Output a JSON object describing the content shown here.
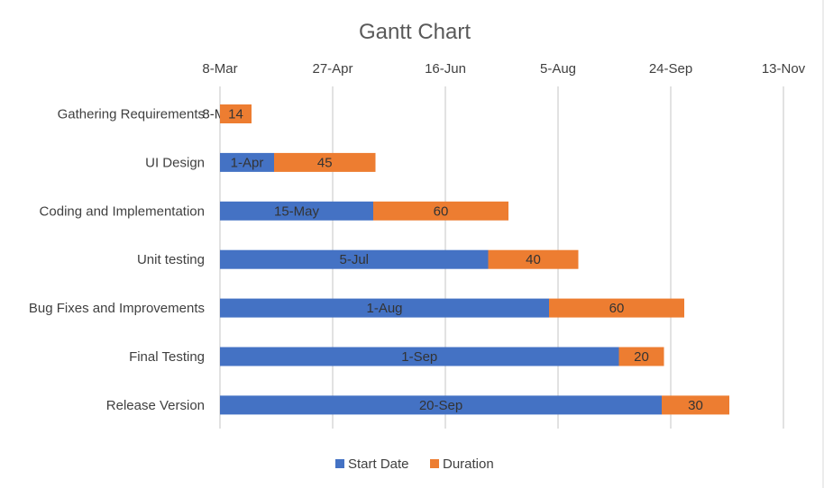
{
  "chart_data": {
    "type": "bar",
    "orientation": "horizontal",
    "stacked": true,
    "title": "Gantt Chart",
    "xaxis_position": "top",
    "xlim": [
      "2023-03-08",
      "2023-11-30"
    ],
    "x_ticks": [
      {
        "date": "2023-03-08",
        "label": "8-Mar"
      },
      {
        "date": "2023-04-27",
        "label": "27-Apr"
      },
      {
        "date": "2023-06-16",
        "label": "16-Jun"
      },
      {
        "date": "2023-08-05",
        "label": "5-Aug"
      },
      {
        "date": "2023-09-24",
        "label": "24-Sep"
      },
      {
        "date": "2023-11-13",
        "label": "13-Nov"
      }
    ],
    "grid": true,
    "legend": "bottom",
    "categories": [
      "Gathering Requirements",
      "UI Design",
      "Coding and Implementation",
      "Unit testing",
      "Bug Fixes and Improvements",
      "Final Testing",
      "Release Version"
    ],
    "series": [
      {
        "name": "Start Date",
        "color": "#4472C4",
        "values": [
          "2023-03-08",
          "2023-04-01",
          "2023-05-15",
          "2023-07-05",
          "2023-08-01",
          "2023-09-01",
          "2023-09-20"
        ],
        "labels": [
          "8-Mar",
          "1-Apr",
          "15-May",
          "5-Jul",
          "1-Aug",
          "1-Sep",
          "20-Sep"
        ]
      },
      {
        "name": "Duration",
        "color": "#ED7D31",
        "values": [
          14,
          45,
          60,
          40,
          60,
          20,
          30
        ],
        "labels": [
          "14",
          "45",
          "60",
          "40",
          "60",
          "20",
          "30"
        ]
      }
    ]
  }
}
